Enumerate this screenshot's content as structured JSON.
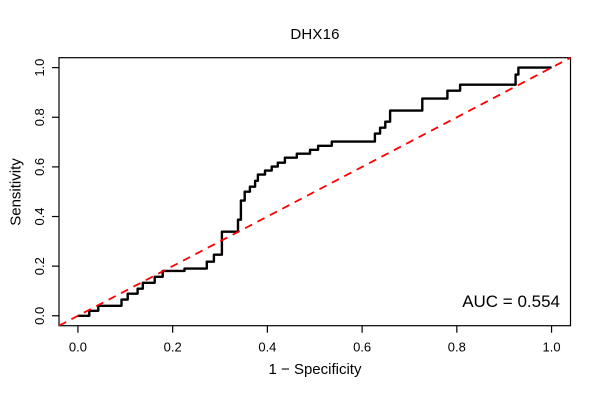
{
  "chart_data": {
    "type": "line",
    "title": "DHX16",
    "xlabel": "1 − Specificity",
    "ylabel": "Sensitivity",
    "annotation": "AUC = 0.554",
    "auc": 0.554,
    "xlim": [
      0,
      1
    ],
    "ylim": [
      0,
      1
    ],
    "axis_padding": 0.04,
    "grid": false,
    "legend": "none",
    "x_ticks": [
      0.0,
      0.2,
      0.4,
      0.6,
      0.8,
      1.0
    ],
    "x_tick_labels": [
      "0.0",
      "0.2",
      "0.4",
      "0.6",
      "0.8",
      "1.0"
    ],
    "y_ticks": [
      0.0,
      0.2,
      0.4,
      0.6,
      0.8,
      1.0
    ],
    "y_tick_labels": [
      "0.0",
      "0.2",
      "0.4",
      "0.6",
      "0.8",
      "1.0"
    ],
    "colors": {
      "curve": "#000000",
      "reference": "#ff0000",
      "text": "#000000"
    },
    "series": [
      {
        "name": "roc-curve",
        "label": "ROC step curve",
        "color": "#000000",
        "type": "step",
        "width": 2.4,
        "points": [
          [
            0.0,
            0.0
          ],
          [
            0.024,
            0.0
          ],
          [
            0.024,
            0.02
          ],
          [
            0.043,
            0.02
          ],
          [
            0.043,
            0.04
          ],
          [
            0.092,
            0.04
          ],
          [
            0.092,
            0.065
          ],
          [
            0.105,
            0.065
          ],
          [
            0.105,
            0.089
          ],
          [
            0.126,
            0.089
          ],
          [
            0.126,
            0.109
          ],
          [
            0.137,
            0.109
          ],
          [
            0.137,
            0.133
          ],
          [
            0.162,
            0.133
          ],
          [
            0.162,
            0.157
          ],
          [
            0.179,
            0.157
          ],
          [
            0.179,
            0.181
          ],
          [
            0.225,
            0.181
          ],
          [
            0.225,
            0.19
          ],
          [
            0.272,
            0.19
          ],
          [
            0.272,
            0.218
          ],
          [
            0.287,
            0.218
          ],
          [
            0.287,
            0.246
          ],
          [
            0.304,
            0.246
          ],
          [
            0.304,
            0.339
          ],
          [
            0.338,
            0.339
          ],
          [
            0.338,
            0.387
          ],
          [
            0.344,
            0.387
          ],
          [
            0.344,
            0.464
          ],
          [
            0.352,
            0.464
          ],
          [
            0.352,
            0.5
          ],
          [
            0.363,
            0.5
          ],
          [
            0.363,
            0.52
          ],
          [
            0.374,
            0.52
          ],
          [
            0.374,
            0.544
          ],
          [
            0.38,
            0.544
          ],
          [
            0.38,
            0.569
          ],
          [
            0.395,
            0.569
          ],
          [
            0.395,
            0.585
          ],
          [
            0.409,
            0.585
          ],
          [
            0.409,
            0.601
          ],
          [
            0.422,
            0.601
          ],
          [
            0.422,
            0.617
          ],
          [
            0.437,
            0.617
          ],
          [
            0.437,
            0.637
          ],
          [
            0.462,
            0.637
          ],
          [
            0.462,
            0.653
          ],
          [
            0.49,
            0.653
          ],
          [
            0.49,
            0.669
          ],
          [
            0.507,
            0.669
          ],
          [
            0.507,
            0.685
          ],
          [
            0.536,
            0.685
          ],
          [
            0.536,
            0.702
          ],
          [
            0.627,
            0.702
          ],
          [
            0.627,
            0.734
          ],
          [
            0.638,
            0.734
          ],
          [
            0.638,
            0.758
          ],
          [
            0.649,
            0.758
          ],
          [
            0.649,
            0.782
          ],
          [
            0.659,
            0.782
          ],
          [
            0.659,
            0.827
          ],
          [
            0.727,
            0.827
          ],
          [
            0.727,
            0.875
          ],
          [
            0.78,
            0.875
          ],
          [
            0.78,
            0.907
          ],
          [
            0.807,
            0.907
          ],
          [
            0.807,
            0.931
          ],
          [
            0.924,
            0.931
          ],
          [
            0.924,
            0.972
          ],
          [
            0.93,
            0.972
          ],
          [
            0.93,
            1.0
          ],
          [
            1.0,
            1.0
          ]
        ]
      },
      {
        "name": "reference-line",
        "label": "Chance line y = x",
        "color": "#ff0000",
        "type": "abline",
        "width": 1.8,
        "dash": "8,6",
        "points": [
          [
            0,
            0
          ],
          [
            1,
            1
          ]
        ]
      }
    ]
  }
}
